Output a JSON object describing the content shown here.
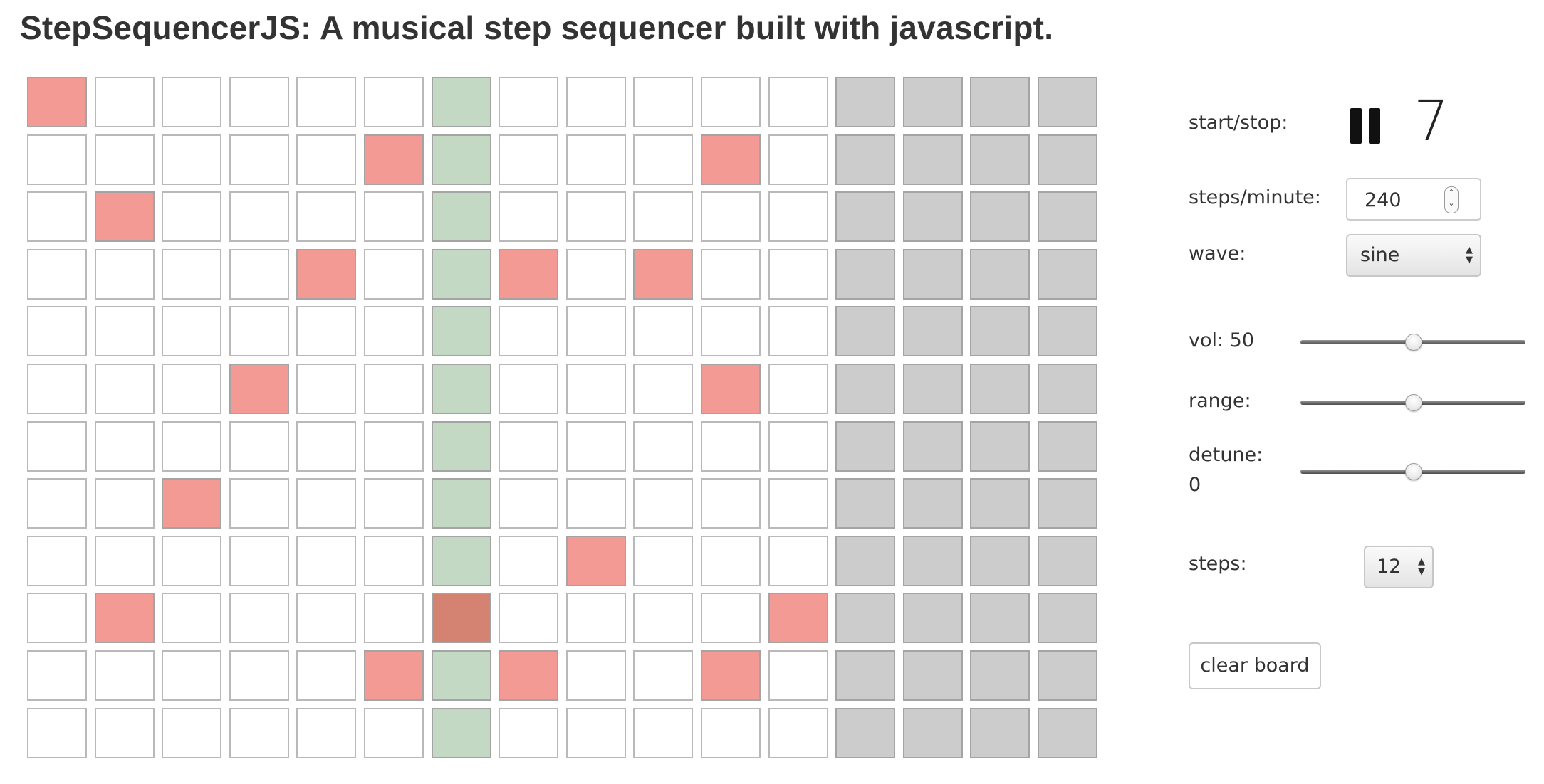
{
  "page": {
    "title": "StepSequencerJS: A musical step sequencer built with javascript."
  },
  "controls": {
    "start_stop_label": "start/stop:",
    "play_state_icon": "pause-icon",
    "current_step": "7",
    "steps_per_minute_label": "steps/minute:",
    "steps_per_minute_value": "240",
    "wave_label": "wave:",
    "wave_value": "sine",
    "vol_label": "vol: 50",
    "vol_value": 50,
    "range_label": "range:",
    "range_value": 0.5,
    "detune_label": "detune:",
    "detune_value": "0",
    "steps_label": "steps:",
    "steps_value": "12",
    "clear_label": "clear board"
  },
  "grid": {
    "rows": 12,
    "columns": 16,
    "active_steps": 12,
    "current_column": 7,
    "on_cells": [
      [
        1,
        1
      ],
      [
        2,
        6
      ],
      [
        2,
        11
      ],
      [
        3,
        2
      ],
      [
        4,
        5
      ],
      [
        4,
        8
      ],
      [
        4,
        10
      ],
      [
        6,
        4
      ],
      [
        6,
        11
      ],
      [
        8,
        3
      ],
      [
        9,
        9
      ],
      [
        10,
        2
      ],
      [
        10,
        7
      ],
      [
        10,
        12
      ],
      [
        11,
        6
      ],
      [
        11,
        8
      ],
      [
        11,
        11
      ]
    ],
    "colors": {
      "off": "#ffffff",
      "inactive": "#cccccc",
      "current": "#c4d9c4",
      "on": "#f49a94",
      "on_current": "#d48373"
    }
  }
}
